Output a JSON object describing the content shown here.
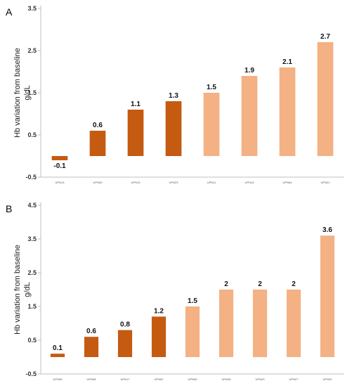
{
  "chart_data": [
    {
      "type": "bar",
      "panel": "A",
      "ylabel": "Hb variation from baseline",
      "ylabel_unit": "g/dL",
      "categories": [
        "UPN13",
        "UPN30",
        "UPN19",
        "UPN23",
        "UPN11",
        "UPN14",
        "UPN04",
        "UPN21"
      ],
      "values": [
        -0.1,
        0.6,
        1.1,
        1.3,
        1.5,
        1.9,
        2.1,
        2.7
      ],
      "value_labels": [
        "-0.1",
        "0.6",
        "1.1",
        "1.3",
        "1.5",
        "1.9",
        "2.1",
        "2.7"
      ],
      "groups": [
        "dark",
        "dark",
        "dark",
        "dark",
        "light",
        "light",
        "light",
        "light"
      ],
      "yticks": [
        "-0.5",
        "0.5",
        "1.5",
        "2.5",
        "3.5"
      ],
      "ylim": [
        -0.5,
        3.5
      ],
      "grid": false,
      "colors": {
        "dark": "#c55a11",
        "light": "#f4b183"
      }
    },
    {
      "type": "bar",
      "panel": "B",
      "ylabel": "Hb variation from baseline",
      "ylabel_unit": "g/dL",
      "categories": [
        "UPN06",
        "UPN08",
        "UPN17",
        "UPN02",
        "UPN05",
        "UPN28",
        "UPN23",
        "UPN27",
        "UPN29"
      ],
      "values": [
        0.1,
        0.6,
        0.8,
        1.2,
        1.5,
        2,
        2,
        2,
        3.6
      ],
      "value_labels": [
        "0.1",
        "0.6",
        "0.8",
        "1.2",
        "1.5",
        "2",
        "2",
        "2",
        "3.6"
      ],
      "groups": [
        "dark",
        "dark",
        "dark",
        "dark",
        "light",
        "light",
        "light",
        "light",
        "light"
      ],
      "yticks": [
        "-0.5",
        "0.5",
        "1.5",
        "2.5",
        "3.5",
        "4.5"
      ],
      "ylim": [
        -0.5,
        4.5
      ],
      "grid": false,
      "colors": {
        "dark": "#c55a11",
        "light": "#f4b183"
      }
    }
  ]
}
